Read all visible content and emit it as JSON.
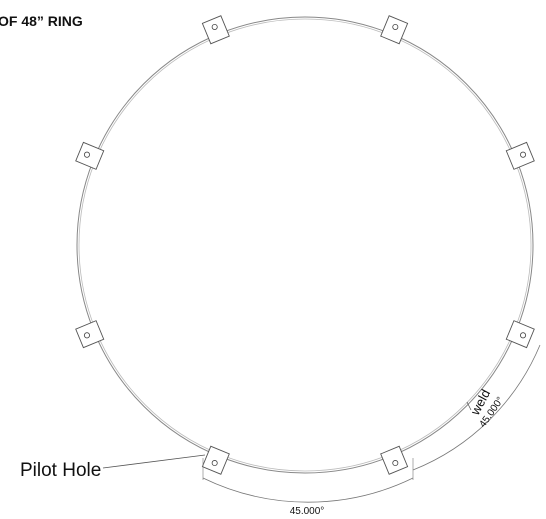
{
  "title": "OF 48” RING",
  "callout": "Pilot Hole",
  "weld_label": "weld",
  "dimensions": [
    "45.000°",
    "45.000°"
  ]
}
